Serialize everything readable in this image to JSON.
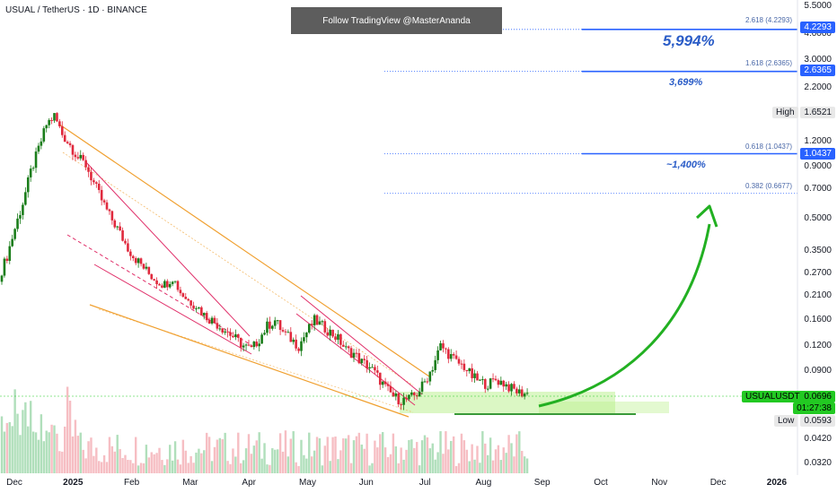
{
  "header": {
    "title": "USUAL / TetherUS · 1D · BINANCE",
    "banner": "Follow TradingView @MasterAnanda"
  },
  "chart_data": {
    "type": "candlestick",
    "symbol": "USUALUSDT",
    "exchange": "BINANCE",
    "timeframe": "1D",
    "y_scale": "log",
    "ylim": [
      0.031,
      5.6
    ],
    "y_ticks": [
      "5.5000",
      "4.0000",
      "3.0000",
      "2.2000",
      "1.6000",
      "1.2000",
      "0.9000",
      "0.7000",
      "0.5000",
      "0.3500",
      "0.2700",
      "0.2100",
      "0.1600",
      "0.1200",
      "0.0900",
      "0.0420",
      "0.0320"
    ],
    "x_ticks": [
      {
        "label": "Dec",
        "bold": false
      },
      {
        "label": "2025",
        "bold": true
      },
      {
        "label": "Feb",
        "bold": false
      },
      {
        "label": "Mar",
        "bold": false
      },
      {
        "label": "Apr",
        "bold": false
      },
      {
        "label": "May",
        "bold": false
      },
      {
        "label": "Jun",
        "bold": false
      },
      {
        "label": "Jul",
        "bold": false
      },
      {
        "label": "Aug",
        "bold": false
      },
      {
        "label": "Sep",
        "bold": false
      },
      {
        "label": "Oct",
        "bold": false
      },
      {
        "label": "Nov",
        "bold": false
      },
      {
        "label": "Dec",
        "bold": false
      },
      {
        "label": "2026",
        "bold": true
      }
    ],
    "close_series_approx": [
      0.26,
      0.33,
      0.45,
      0.6,
      0.85,
      1.1,
      1.45,
      1.6,
      1.3,
      1.15,
      1.0,
      0.92,
      0.75,
      0.62,
      0.52,
      0.45,
      0.38,
      0.33,
      0.3,
      0.27,
      0.25,
      0.24,
      0.26,
      0.22,
      0.2,
      0.19,
      0.17,
      0.16,
      0.15,
      0.14,
      0.13,
      0.12,
      0.115,
      0.13,
      0.15,
      0.16,
      0.14,
      0.13,
      0.12,
      0.14,
      0.16,
      0.15,
      0.14,
      0.13,
      0.115,
      0.11,
      0.1,
      0.095,
      0.085,
      0.075,
      0.068,
      0.065,
      0.066,
      0.07,
      0.08,
      0.095,
      0.12,
      0.11,
      0.1,
      0.095,
      0.085,
      0.08,
      0.078,
      0.082,
      0.079,
      0.074,
      0.071,
      0.07
    ],
    "fib_levels": [
      {
        "label": "2.618 (4.2293)",
        "value": 4.2293,
        "badge": "4.2293"
      },
      {
        "label": "1.618 (2.6365)",
        "value": 2.6365,
        "badge": "2.6365"
      },
      {
        "label": "0.618 (1.0437)",
        "value": 1.0437,
        "badge": "1.0437"
      },
      {
        "label": "0.382 (0.6677)",
        "value": 0.6677
      }
    ],
    "annotations": {
      "pct_1": "5,994%",
      "pct_2": "3,699%",
      "pct_3": "~1,400%"
    },
    "high": {
      "label": "High",
      "value": "1.6521"
    },
    "low": {
      "label": "Low",
      "value": "0.0593"
    },
    "last": {
      "symbol": "USUALUSDT",
      "price": "0.0696",
      "countdown": "01:27:38"
    },
    "colors": {
      "up": "#26a69a",
      "down": "#ef5350",
      "candle_up": "#1a7d1a",
      "candle_down": "#e0293d",
      "accent": "#2962ff",
      "trend_orange": "#f0a030",
      "trend_pink": "#e0306a",
      "arrow": "#22b022",
      "zone": "#b8f08a"
    }
  }
}
